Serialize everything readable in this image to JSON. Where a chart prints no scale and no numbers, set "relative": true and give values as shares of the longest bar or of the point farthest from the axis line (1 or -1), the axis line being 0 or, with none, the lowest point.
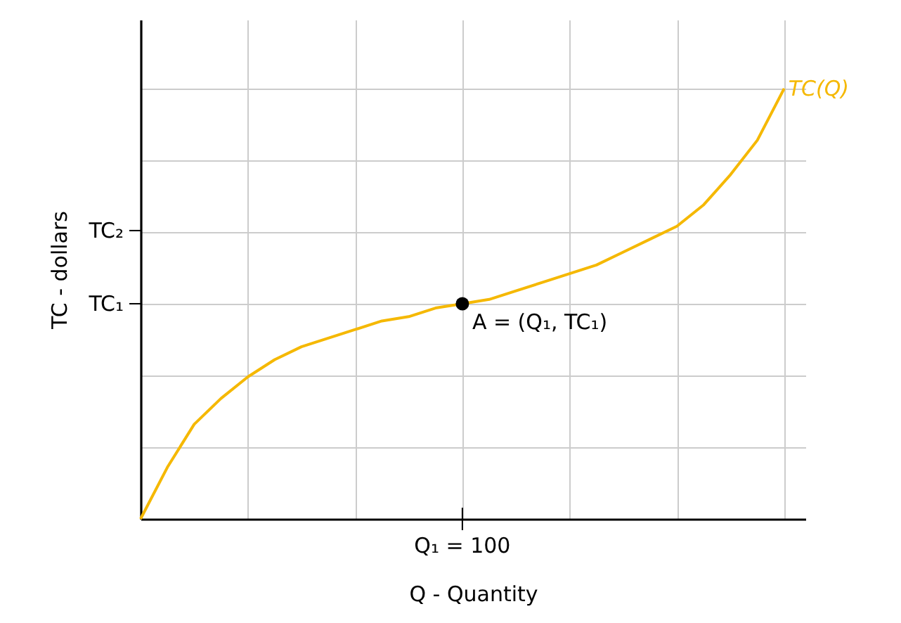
{
  "chart_data": {
    "type": "line",
    "xlabel": "Q - Quantity",
    "ylabel": "TC - dollars",
    "relative": true,
    "grid": true,
    "categories": [
      null,
      null,
      null,
      null,
      null,
      null,
      null,
      null,
      null,
      null,
      null,
      null,
      null,
      null,
      null,
      null,
      null,
      null,
      null,
      null,
      null,
      null,
      null,
      null,
      null
    ],
    "series": [
      {
        "name": "TC(Q)",
        "color": "#f5b800",
        "values": [
          0,
          0.12,
          0.22,
          0.28,
          0.33,
          0.37,
          0.4,
          0.42,
          0.44,
          0.46,
          0.47,
          0.49,
          0.5,
          0.51,
          0.53,
          0.55,
          0.57,
          0.59,
          0.62,
          0.65,
          0.68,
          0.73,
          0.8,
          0.88,
          1.0
        ]
      },
      {
        "color": "#000000",
        "marker": "circle",
        "values": [
          null,
          null,
          null,
          null,
          null,
          null,
          null,
          null,
          null,
          null,
          null,
          null,
          0.5,
          null,
          null,
          null,
          null,
          null,
          null,
          null,
          null,
          null,
          null,
          null,
          null
        ]
      }
    ],
    "ref_lines": [
      {
        "axis": "y",
        "value": 0.5,
        "label": "TC₁"
      },
      {
        "axis": "y",
        "value": 0.67,
        "label": "TC₂"
      }
    ],
    "annotations": [
      "A = (Q₁, TC₁)",
      "Q₁ = 100"
    ]
  }
}
